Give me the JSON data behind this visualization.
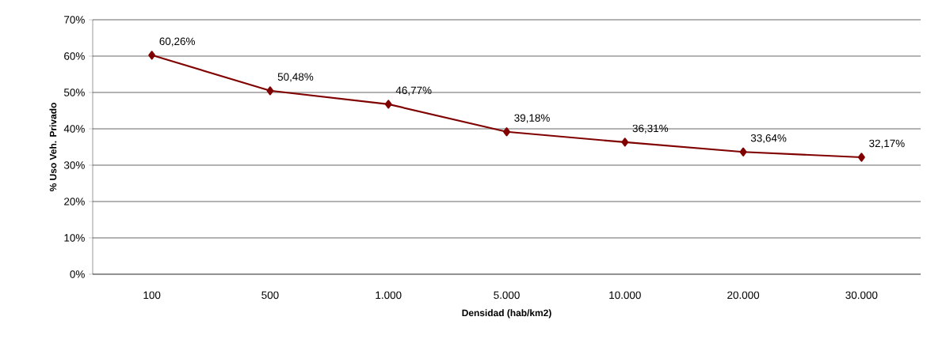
{
  "chart_data": {
    "type": "line",
    "xlabel": "Densidad (hab/km2)",
    "ylabel": "% Uso Veh. Privado",
    "categories": [
      "100",
      "500",
      "1.000",
      "5.000",
      "10.000",
      "20.000",
      "30.000"
    ],
    "series": [
      {
        "color": "#800000",
        "values": [
          60.26,
          50.48,
          46.77,
          39.18,
          36.31,
          33.64,
          32.17
        ],
        "value_labels": [
          "60,26%",
          "50,48%",
          "46,77%",
          "39,18%",
          "36,31%",
          "33,64%",
          "32,17%"
        ]
      }
    ],
    "ylim": [
      0,
      70
    ],
    "yticks": [
      {
        "value": 0,
        "label": "0%"
      },
      {
        "value": 10,
        "label": "10%"
      },
      {
        "value": 20,
        "label": "20%"
      },
      {
        "value": 30,
        "label": "30%"
      },
      {
        "value": 40,
        "label": "40%"
      },
      {
        "value": 50,
        "label": "50%"
      },
      {
        "value": 60,
        "label": "60%"
      },
      {
        "value": 70,
        "label": "70%"
      }
    ],
    "grid": "y",
    "marker": "diamond",
    "line_style": "solid"
  }
}
